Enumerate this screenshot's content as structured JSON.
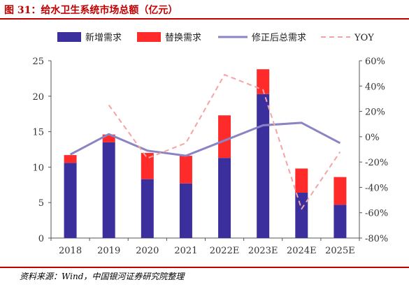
{
  "figure_title": "图 31：给水卫生系统市场总额（亿元）",
  "source": "资料来源：Wind，中国银河证券研究院整理",
  "colors": {
    "new_demand": "#3b2f9e",
    "replacement_demand": "#ff2b2b",
    "total_after_revision": "#8a84c4",
    "yoy": "#f5a3a3",
    "title": "#c00000",
    "axis": "#555555"
  },
  "chart_data": {
    "type": "bar",
    "stacked": true,
    "categories": [
      "2018",
      "2019",
      "2020",
      "2021",
      "2022E",
      "2023E",
      "2024E",
      "2025E"
    ],
    "series": [
      {
        "name": "新增需求",
        "kind": "bar",
        "axis": "left",
        "values": [
          10.6,
          13.5,
          8.3,
          7.7,
          11.3,
          20.3,
          6.4,
          4.7
        ]
      },
      {
        "name": "替换需求",
        "kind": "bar",
        "axis": "left",
        "values": [
          1.1,
          1.1,
          3.7,
          3.9,
          6.0,
          3.5,
          3.4,
          3.9
        ]
      },
      {
        "name": "修正后总需求",
        "kind": "line",
        "axis": "right",
        "values": [
          -14,
          2,
          -11,
          -15,
          -3,
          9,
          11,
          -5
        ]
      },
      {
        "name": "YOY",
        "kind": "line-dashed",
        "axis": "right",
        "values": [
          null,
          25,
          -17,
          -5,
          49,
          37,
          -57,
          -12
        ]
      }
    ],
    "left_axis": {
      "min": 0,
      "max": 25,
      "step": 5,
      "ticks": [
        "0",
        "5",
        "10",
        "15",
        "20",
        "25"
      ]
    },
    "right_axis": {
      "min": -80,
      "max": 60,
      "step": 20,
      "ticks": [
        "-80%",
        "-60%",
        "-40%",
        "-20%",
        "0%",
        "20%",
        "40%",
        "60%"
      ]
    },
    "legend_position": "top",
    "grid": false
  }
}
